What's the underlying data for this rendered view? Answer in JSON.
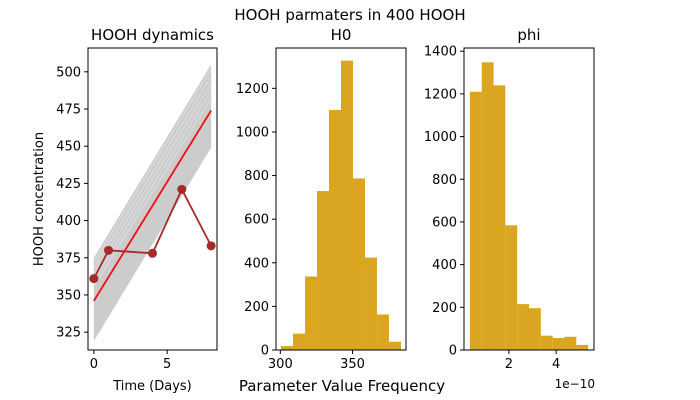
{
  "figure": {
    "suptitle": "HOOH parmaters in 400 HOOH",
    "bottom_label": "Parameter Value Frequency"
  },
  "chart_data": [
    {
      "type": "line",
      "title": "HOOH dynamics",
      "xlabel": "Time (Days)",
      "ylabel": "HOOH concentration",
      "xlim": [
        -0.4,
        8.4
      ],
      "ylim": [
        313,
        516
      ],
      "xticks": [
        0,
        5
      ],
      "yticks": [
        325,
        350,
        375,
        400,
        425,
        450,
        475,
        500
      ],
      "grid": false,
      "band": {
        "color": "#cccccc",
        "x": [
          0,
          8
        ],
        "upper": [
          375,
          505
        ],
        "lower": [
          319,
          449
        ]
      },
      "model_lines": {
        "color": "#d9d9d9",
        "lines": [
          {
            "x": [
              0,
              8
            ],
            "y": [
              372,
              502
            ]
          },
          {
            "x": [
              0,
              8
            ],
            "y": [
              368,
              497
            ]
          },
          {
            "x": [
              0,
              8
            ],
            "y": [
              364,
              492
            ]
          },
          {
            "x": [
              0,
              8
            ],
            "y": [
              360,
              487
            ]
          },
          {
            "x": [
              0,
              8
            ],
            "y": [
              356,
              482
            ]
          }
        ]
      },
      "series": [
        {
          "kind": "line",
          "color": "#ee1111",
          "x": [
            0,
            8
          ],
          "y": [
            346,
            474
          ]
        },
        {
          "kind": "line-markers",
          "color": "#a52a2a",
          "x": [
            0,
            1,
            4,
            6,
            8
          ],
          "y": [
            361,
            380,
            378,
            421,
            383
          ]
        }
      ]
    },
    {
      "type": "bar",
      "title": "H0",
      "xlim": [
        297,
        387
      ],
      "ylim": [
        0,
        1385
      ],
      "xticks": [
        300,
        350
      ],
      "yticks": [
        0,
        200,
        400,
        600,
        800,
        1000,
        1200
      ],
      "color": "#daa520",
      "bins": [
        {
          "x0": 300.5,
          "x1": 308.8,
          "value": 18
        },
        {
          "x0": 308.8,
          "x1": 317.1,
          "value": 75
        },
        {
          "x0": 317.1,
          "x1": 325.4,
          "value": 337
        },
        {
          "x0": 325.4,
          "x1": 333.7,
          "value": 729
        },
        {
          "x0": 333.7,
          "x1": 342.0,
          "value": 1101
        },
        {
          "x0": 342.0,
          "x1": 350.3,
          "value": 1327
        },
        {
          "x0": 350.3,
          "x1": 358.6,
          "value": 787
        },
        {
          "x0": 358.6,
          "x1": 366.9,
          "value": 424
        },
        {
          "x0": 366.9,
          "x1": 375.2,
          "value": 163
        },
        {
          "x0": 375.2,
          "x1": 383.5,
          "value": 38
        }
      ]
    },
    {
      "type": "bar",
      "title": "phi",
      "xlim": [
        0.1,
        5.6
      ],
      "ylim": [
        0,
        1415
      ],
      "xticks": [
        2,
        4
      ],
      "yticks": [
        0,
        200,
        400,
        600,
        800,
        1000,
        1200,
        1400
      ],
      "offset_text": "1e−10",
      "color": "#daa520",
      "bins": [
        {
          "x0": 0.35,
          "x1": 0.85,
          "value": 1210
        },
        {
          "x0": 0.85,
          "x1": 1.35,
          "value": 1348
        },
        {
          "x0": 1.35,
          "x1": 1.85,
          "value": 1240
        },
        {
          "x0": 1.85,
          "x1": 2.35,
          "value": 584
        },
        {
          "x0": 2.35,
          "x1": 2.85,
          "value": 215
        },
        {
          "x0": 2.85,
          "x1": 3.35,
          "value": 196
        },
        {
          "x0": 3.35,
          "x1": 3.85,
          "value": 67
        },
        {
          "x0": 3.85,
          "x1": 4.35,
          "value": 56
        },
        {
          "x0": 4.35,
          "x1": 4.85,
          "value": 62
        },
        {
          "x0": 4.85,
          "x1": 5.35,
          "value": 24
        }
      ]
    }
  ]
}
